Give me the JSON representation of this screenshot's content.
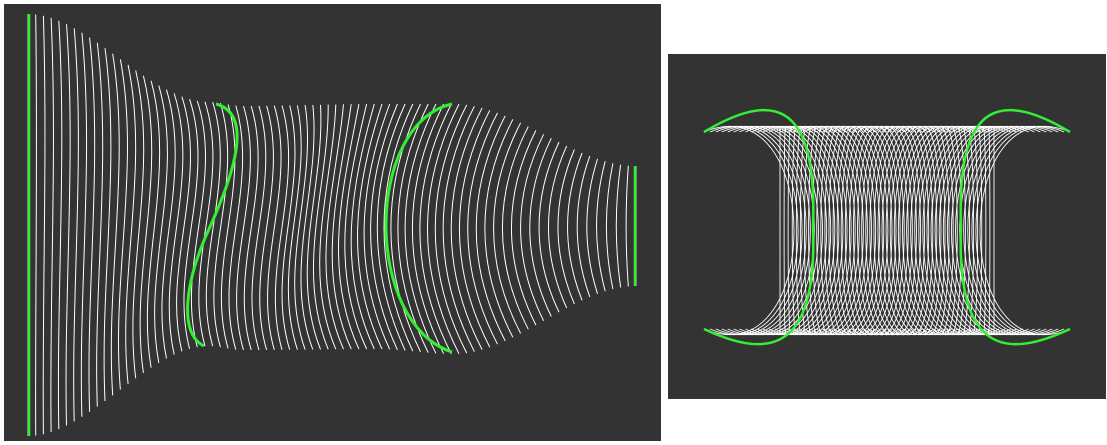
{
  "colors": {
    "background": "#ffffff",
    "panel": "#333333",
    "line": "#ffffff",
    "highlight": "#33ee33"
  },
  "panels": {
    "left": {
      "description_type": "lofted-sweep",
      "profile_count": 80
    },
    "right": {
      "description_type": "curve-family",
      "profile_count": 50
    }
  }
}
